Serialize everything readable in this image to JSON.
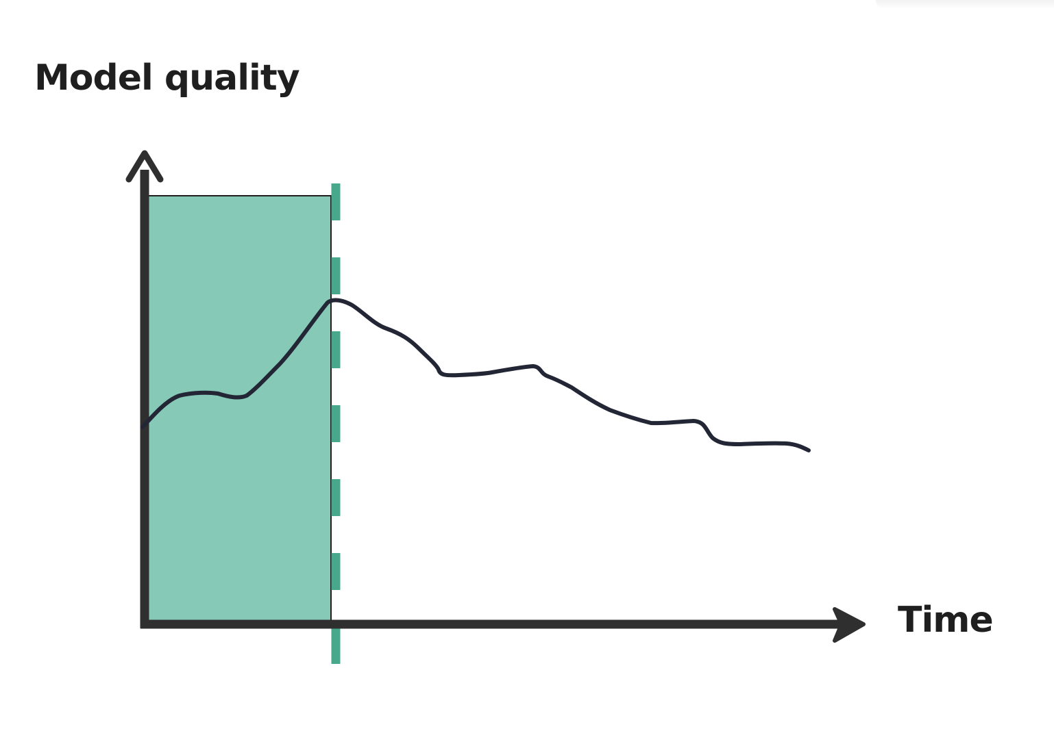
{
  "labels": {
    "y_axis": "Model quality",
    "x_axis": "Time"
  },
  "colors": {
    "axis": "#2f2f2f",
    "curve": "#232635",
    "highlight_fill": "#85c9b6",
    "marker": "#48a88b",
    "text": "#1f1f1f"
  },
  "icons": {
    "y_axis_head": "arrow-up-icon",
    "x_axis_head": "arrow-right-icon"
  }
}
